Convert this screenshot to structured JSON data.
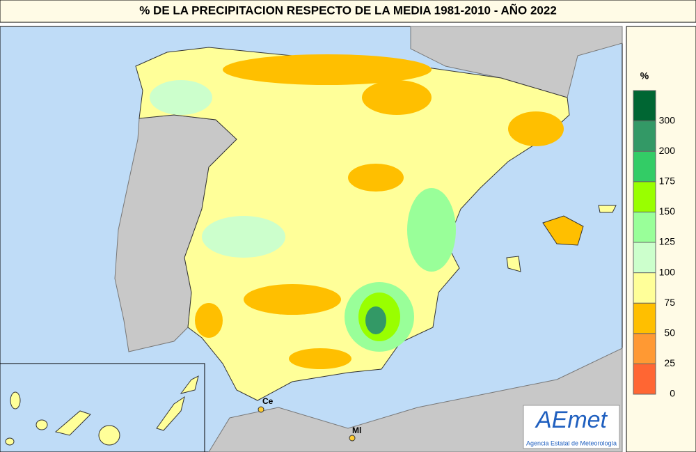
{
  "title": "% DE LA PRECIPITACION RESPECTO DE LA MEDIA 1981-2010 - AÑO 2022",
  "legend": {
    "unit": "%",
    "ticks": [
      0,
      25,
      50,
      75,
      100,
      125,
      150,
      175,
      200,
      300
    ],
    "colors": [
      "#ff6633",
      "#ff9933",
      "#ffbf00",
      "#ffff99",
      "#ccffcc",
      "#99ff99",
      "#99ff00",
      "#33cc66",
      "#339966",
      "#006633"
    ]
  },
  "places": [
    "Ce",
    "Ml"
  ],
  "logo": {
    "name": "AEmet",
    "subtitle": "Agencia Estatal de Meteorología"
  }
}
